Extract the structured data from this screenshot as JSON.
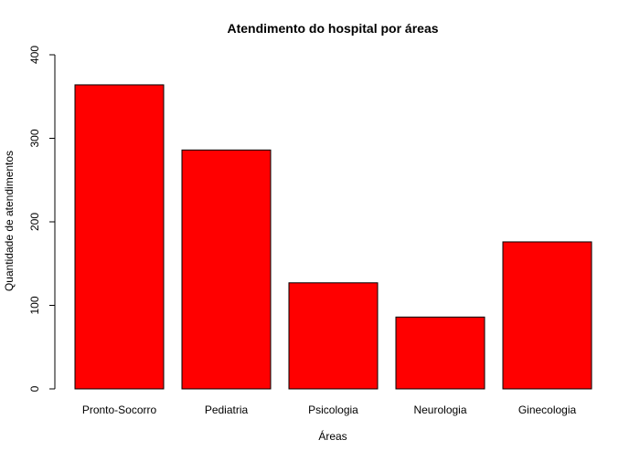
{
  "chart_data": {
    "type": "bar",
    "title": "Atendimento do hospital por áreas",
    "xlabel": "Áreas",
    "ylabel": "Quantidade de atendimentos",
    "categories": [
      "Pronto-Socorro",
      "Pediatria",
      "Psicologia",
      "Neurologia",
      "Ginecologia"
    ],
    "values": [
      364,
      286,
      127,
      86,
      176
    ],
    "ylim": [
      0,
      400
    ],
    "yticks": [
      "0",
      "100",
      "200",
      "300",
      "400"
    ],
    "bar_color": "#ff0000",
    "bar_border_color": "#000000",
    "grid": false,
    "legend": "none"
  }
}
